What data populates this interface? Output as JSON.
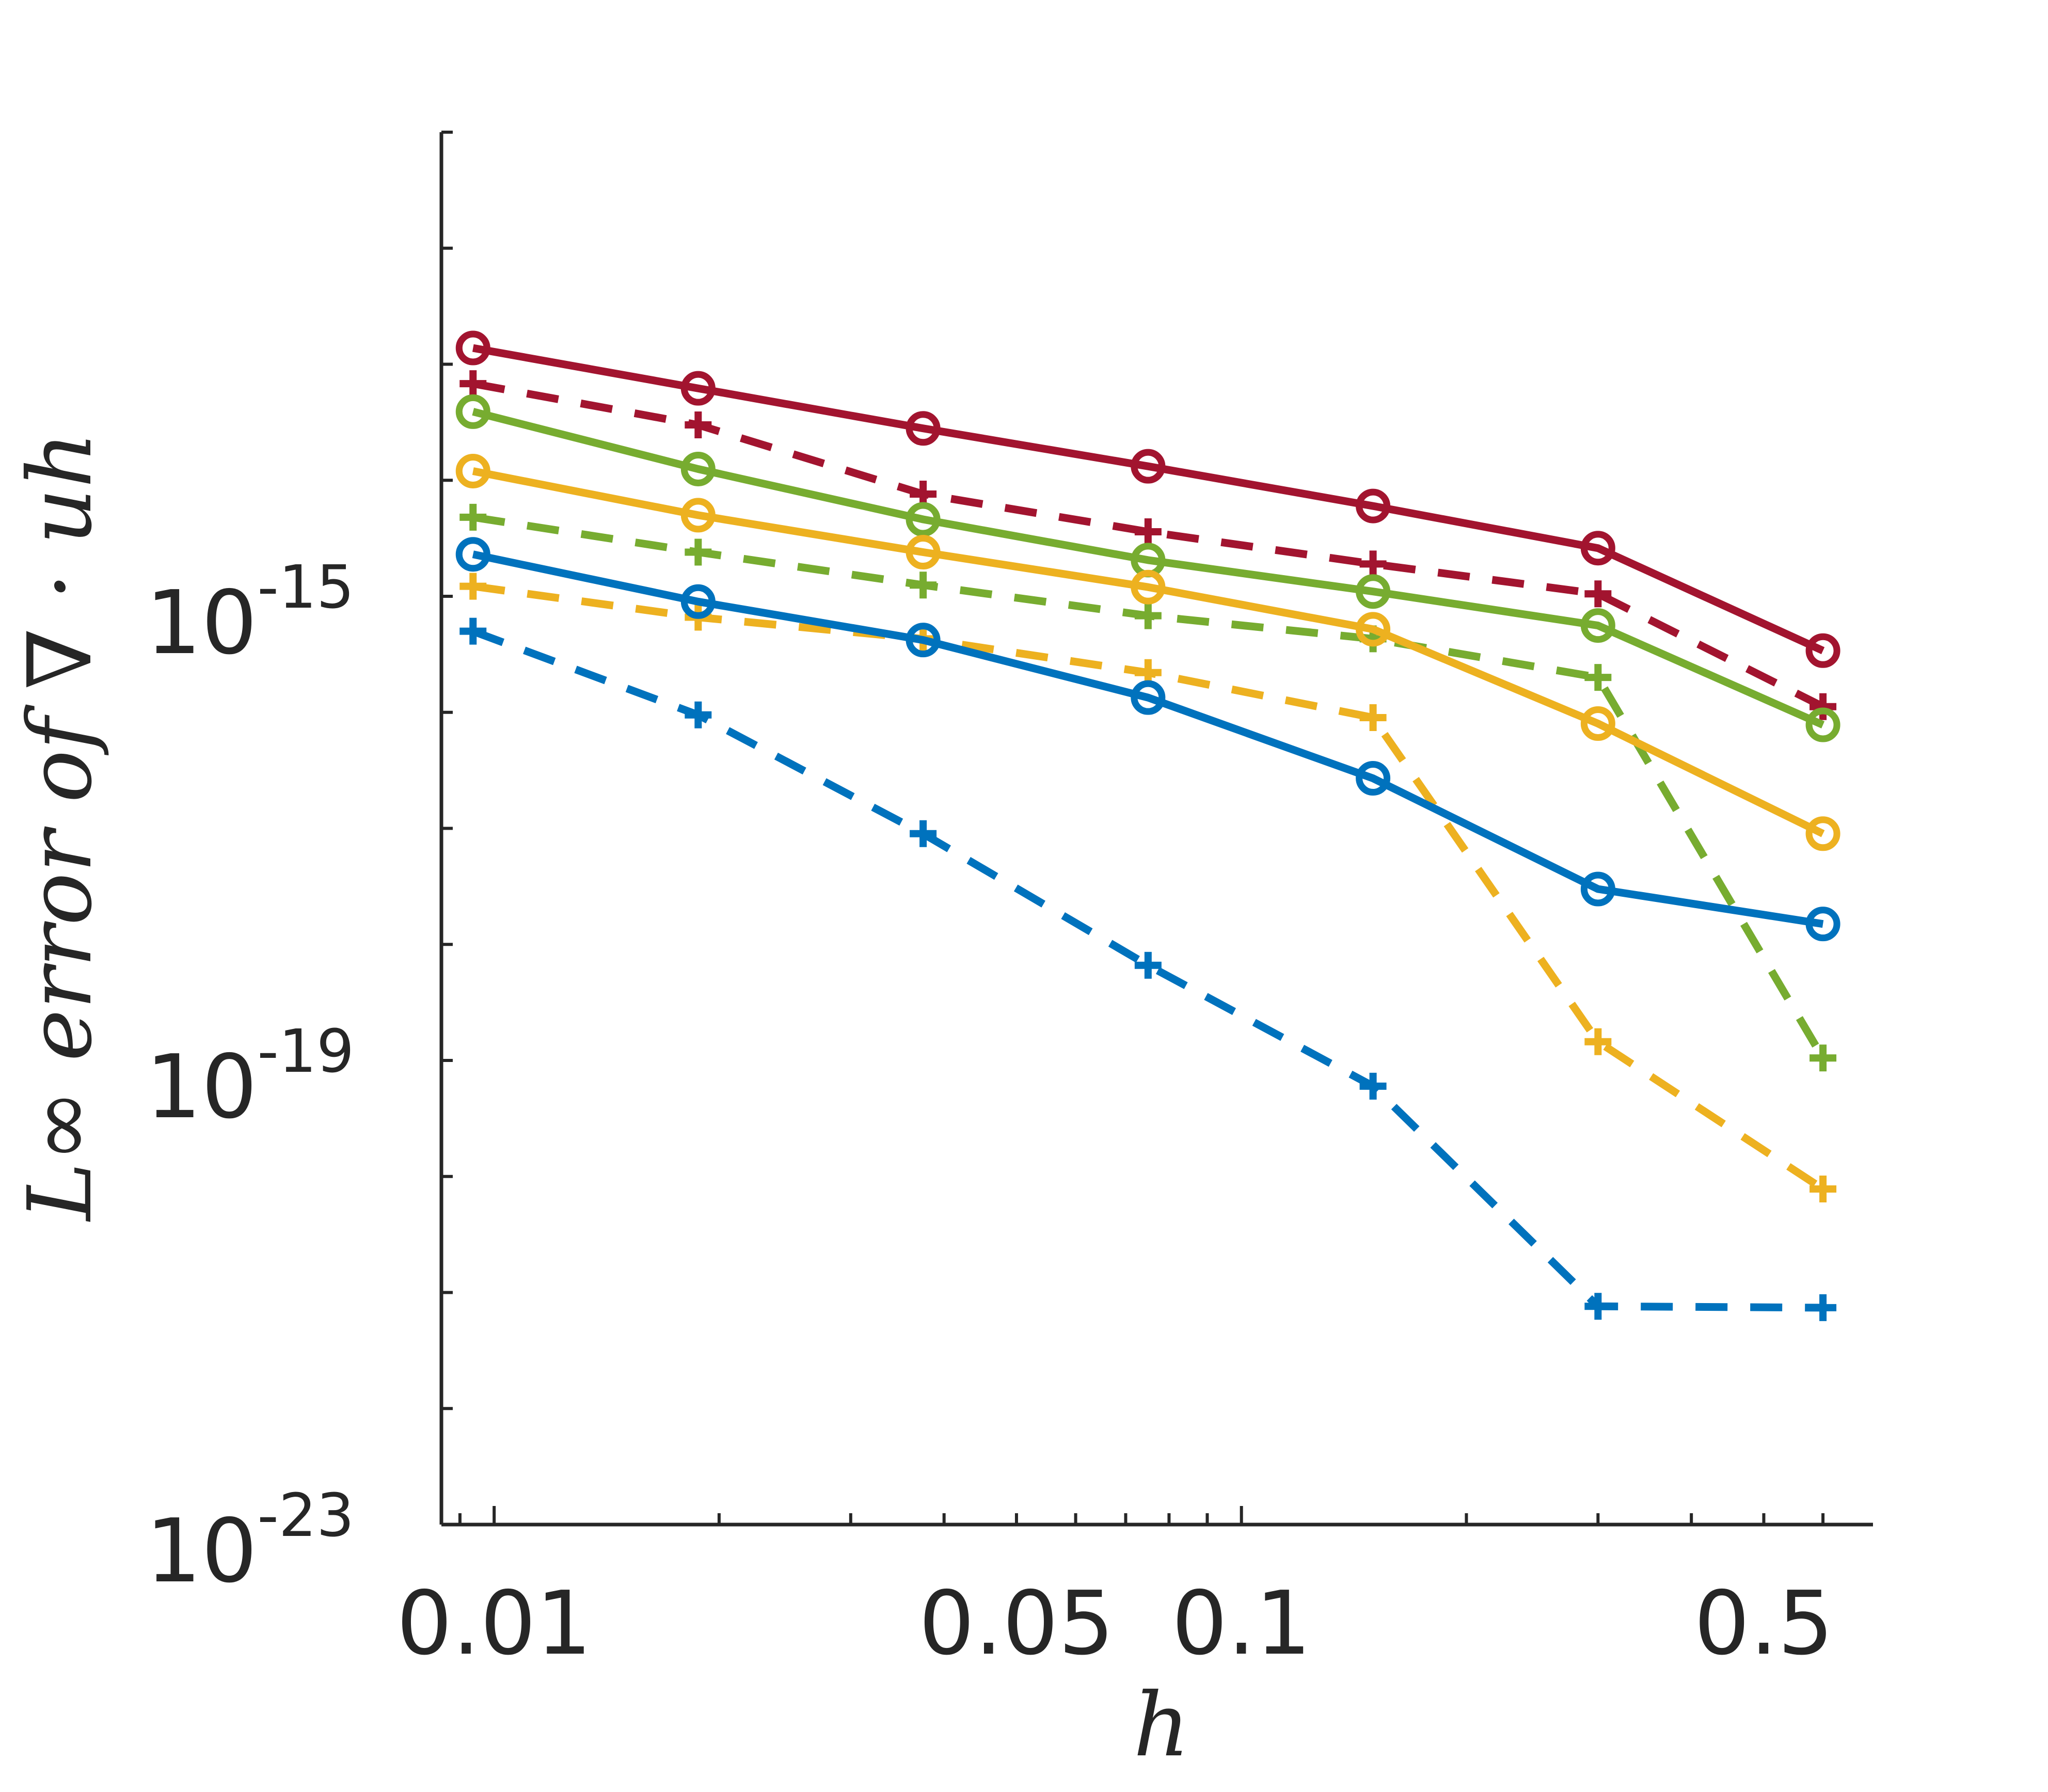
{
  "chart_data": {
    "type": "line",
    "xscale": "log",
    "yscale": "log",
    "xlim": [
      0.0085,
      0.7
    ],
    "ylim": [
      1e-23,
      1e-11
    ],
    "xticks": [
      {
        "value": 0.01,
        "label": "0.01"
      },
      {
        "value": 0.05,
        "label": "0.05"
      },
      {
        "value": 0.1,
        "label": "0.1"
      },
      {
        "value": 0.5,
        "label": "0.5"
      }
    ],
    "yticks": [
      {
        "value": 1e-15,
        "base": "10",
        "exp": "-15"
      },
      {
        "value": 1e-19,
        "base": "10",
        "exp": "-19"
      },
      {
        "value": 1e-23,
        "base": "10",
        "exp": "-23"
      }
    ],
    "xlabel": "h",
    "ylabel": "L∞ error of ∇ · uh",
    "grid": false,
    "x": [
      0.00937,
      0.01875,
      0.0375,
      0.075,
      0.15,
      0.3,
      0.6
    ],
    "series": [
      {
        "color": "#A2142F",
        "dash": "solid",
        "marker": "circle",
        "values": [
          1.38e-13,
          6.2e-14,
          2.8e-14,
          1.32e-14,
          6e-15,
          2.6e-15,
          3.4e-16
        ]
      },
      {
        "color": "#A2142F",
        "dash": "dashed",
        "marker": "plus",
        "values": [
          6.8e-14,
          3e-14,
          7.6e-15,
          3.6e-15,
          1.9e-15,
          1.05e-15,
          1.12e-16
        ]
      },
      {
        "color": "#77AC30",
        "dash": "solid",
        "marker": "circle",
        "values": [
          3.9e-14,
          1.25e-14,
          4.6e-15,
          2.05e-15,
          1.1e-15,
          5.6e-16,
          7.8e-17
        ]
      },
      {
        "color": "#77AC30",
        "dash": "dashed",
        "marker": "plus",
        "values": [
          4.8e-15,
          2.4e-15,
          1.25e-15,
          6.8e-16,
          4.3e-16,
          2e-16,
          1.05e-19
        ]
      },
      {
        "color": "#EDB120",
        "dash": "solid",
        "marker": "circle",
        "values": [
          1.2e-14,
          5e-15,
          2.4e-15,
          1.2e-15,
          5.2e-16,
          8e-17,
          9e-18
        ]
      },
      {
        "color": "#EDB120",
        "dash": "dashed",
        "marker": "plus",
        "values": [
          1.22e-15,
          6.6e-16,
          4.3e-16,
          2.2e-16,
          9e-17,
          1.45e-19,
          7.8e-21
        ]
      },
      {
        "color": "#0072BD",
        "dash": "solid",
        "marker": "circle",
        "values": [
          2.3e-15,
          9e-16,
          4.2e-16,
          1.34e-16,
          2.7e-17,
          3e-18,
          1.5e-18
        ]
      },
      {
        "color": "#0072BD",
        "dash": "dashed",
        "marker": "plus",
        "values": [
          5e-16,
          9.5e-17,
          9e-18,
          6.6e-19,
          6e-20,
          7.6e-22,
          7.4e-22
        ]
      }
    ]
  }
}
